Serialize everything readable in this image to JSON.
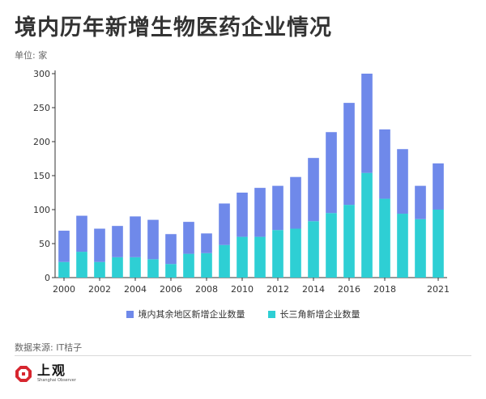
{
  "header": {
    "title": "境内历年新增生物医药企业情况",
    "unit": "单位: 家"
  },
  "colors": {
    "series_other": "#6f89ea",
    "series_yrd": "#2ecfd4",
    "axis": "#333333",
    "grid": "#e6e6e6"
  },
  "chart_data": {
    "type": "bar",
    "stacked": true,
    "title": "境内历年新增生物医药企业情况",
    "xlabel": "",
    "ylabel": "单位: 家",
    "ylim": [
      0,
      300
    ],
    "yticks": [
      0,
      50,
      100,
      150,
      200,
      250,
      300
    ],
    "categories": [
      "2000",
      "2001",
      "2002",
      "2003",
      "2004",
      "2005",
      "2006",
      "2007",
      "2008",
      "2009",
      "2010",
      "2011",
      "2012",
      "2013",
      "2014",
      "2015",
      "2016",
      "2017",
      "2018",
      "2019",
      "2020",
      "2021"
    ],
    "xtick_labels": [
      "2000",
      "",
      "2002",
      "",
      "2004",
      "",
      "2006",
      "",
      "2008",
      "",
      "2010",
      "",
      "2012",
      "",
      "2014",
      "",
      "2016",
      "",
      "2018",
      "",
      "",
      "2021"
    ],
    "series": [
      {
        "name": "长三角新增企业数量",
        "color": "#2ecfd4",
        "values": [
          23,
          38,
          23,
          30,
          30,
          27,
          20,
          35,
          36,
          48,
          60,
          60,
          70,
          72,
          83,
          95,
          107,
          154,
          116,
          94,
          86,
          100
        ]
      },
      {
        "name": "境内其余地区新增企业数量",
        "color": "#6f89ea",
        "values": [
          46,
          53,
          49,
          46,
          60,
          58,
          44,
          47,
          29,
          61,
          65,
          72,
          65,
          76,
          93,
          119,
          150,
          146,
          102,
          95,
          49,
          68
        ]
      }
    ],
    "totals": [
      69,
      91,
      72,
      76,
      90,
      85,
      64,
      82,
      65,
      109,
      125,
      132,
      135,
      148,
      176,
      214,
      257,
      300,
      218,
      189,
      135,
      168
    ],
    "legend": [
      "境内其余地区新增企业数量",
      "长三角新增企业数量"
    ],
    "legend_position": "bottom-center",
    "grid": false
  },
  "legend": {
    "other_label": "境内其余地区新增企业数量",
    "yrd_label": "长三角新增企业数量"
  },
  "footer": {
    "source": "数据来源: IT桔子",
    "logo_cn": "上观",
    "logo_en": "Shanghai Observer"
  }
}
